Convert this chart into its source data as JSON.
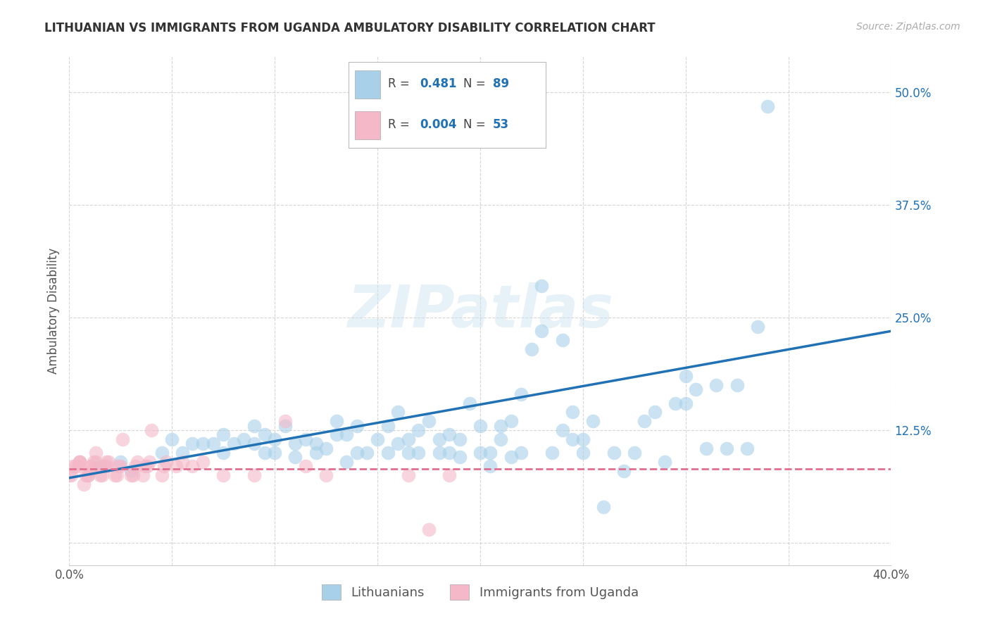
{
  "title": "LITHUANIAN VS IMMIGRANTS FROM UGANDA AMBULATORY DISABILITY CORRELATION CHART",
  "source": "Source: ZipAtlas.com",
  "ylabel": "Ambulatory Disability",
  "watermark": "ZIPatlas",
  "xlim": [
    0.0,
    0.4
  ],
  "ylim": [
    -0.025,
    0.54
  ],
  "xtick_positions": [
    0.0,
    0.05,
    0.1,
    0.15,
    0.2,
    0.25,
    0.3,
    0.35,
    0.4
  ],
  "xtick_labels": [
    "0.0%",
    "",
    "",
    "",
    "",
    "",
    "",
    "",
    "40.0%"
  ],
  "ytick_positions": [
    0.0,
    0.125,
    0.25,
    0.375,
    0.5
  ],
  "ytick_labels": [
    "",
    "12.5%",
    "25.0%",
    "37.5%",
    "50.0%"
  ],
  "grid_color": "#cccccc",
  "bg_color": "#ffffff",
  "legend_R_blue": "0.481",
  "legend_N_blue": "89",
  "legend_R_pink": "0.004",
  "legend_N_pink": "53",
  "blue_color": "#a8d0e8",
  "pink_color": "#f4b8c8",
  "blue_line_color": "#2171b5",
  "pink_line_color": "#e07090",
  "blue_label_color": "#2171b5",
  "legend1_label": "Lithuanians",
  "legend2_label": "Immigrants from Uganda",
  "blue_scatter_x": [
    0.015,
    0.025,
    0.03,
    0.045,
    0.05,
    0.055,
    0.06,
    0.065,
    0.07,
    0.075,
    0.075,
    0.08,
    0.085,
    0.09,
    0.09,
    0.095,
    0.095,
    0.1,
    0.1,
    0.105,
    0.11,
    0.11,
    0.115,
    0.12,
    0.12,
    0.125,
    0.13,
    0.13,
    0.135,
    0.135,
    0.14,
    0.14,
    0.145,
    0.15,
    0.155,
    0.155,
    0.16,
    0.16,
    0.165,
    0.165,
    0.17,
    0.17,
    0.175,
    0.18,
    0.18,
    0.185,
    0.185,
    0.19,
    0.19,
    0.195,
    0.2,
    0.2,
    0.205,
    0.205,
    0.21,
    0.21,
    0.215,
    0.215,
    0.22,
    0.22,
    0.225,
    0.23,
    0.23,
    0.235,
    0.24,
    0.24,
    0.245,
    0.245,
    0.25,
    0.25,
    0.255,
    0.26,
    0.265,
    0.27,
    0.275,
    0.28,
    0.285,
    0.29,
    0.295,
    0.3,
    0.3,
    0.305,
    0.31,
    0.315,
    0.32,
    0.325,
    0.33,
    0.335,
    0.34
  ],
  "blue_scatter_y": [
    0.085,
    0.09,
    0.08,
    0.1,
    0.115,
    0.1,
    0.11,
    0.11,
    0.11,
    0.1,
    0.12,
    0.11,
    0.115,
    0.11,
    0.13,
    0.1,
    0.12,
    0.1,
    0.115,
    0.13,
    0.095,
    0.11,
    0.115,
    0.1,
    0.11,
    0.105,
    0.12,
    0.135,
    0.09,
    0.12,
    0.1,
    0.13,
    0.1,
    0.115,
    0.1,
    0.13,
    0.11,
    0.145,
    0.1,
    0.115,
    0.1,
    0.125,
    0.135,
    0.1,
    0.115,
    0.1,
    0.12,
    0.095,
    0.115,
    0.155,
    0.1,
    0.13,
    0.085,
    0.1,
    0.115,
    0.13,
    0.095,
    0.135,
    0.1,
    0.165,
    0.215,
    0.235,
    0.285,
    0.1,
    0.125,
    0.225,
    0.115,
    0.145,
    0.1,
    0.115,
    0.135,
    0.04,
    0.1,
    0.08,
    0.1,
    0.135,
    0.145,
    0.09,
    0.155,
    0.185,
    0.155,
    0.17,
    0.105,
    0.175,
    0.105,
    0.175,
    0.105,
    0.24,
    0.485
  ],
  "pink_scatter_x": [
    0.0,
    0.001,
    0.002,
    0.003,
    0.004,
    0.005,
    0.005,
    0.005,
    0.007,
    0.008,
    0.009,
    0.009,
    0.01,
    0.01,
    0.011,
    0.012,
    0.013,
    0.013,
    0.015,
    0.016,
    0.017,
    0.018,
    0.018,
    0.019,
    0.022,
    0.023,
    0.024,
    0.025,
    0.026,
    0.03,
    0.031,
    0.032,
    0.033,
    0.036,
    0.037,
    0.038,
    0.039,
    0.04,
    0.045,
    0.046,
    0.047,
    0.052,
    0.055,
    0.06,
    0.065,
    0.075,
    0.09,
    0.105,
    0.115,
    0.125,
    0.165,
    0.175,
    0.185
  ],
  "pink_scatter_y": [
    0.075,
    0.075,
    0.085,
    0.085,
    0.085,
    0.09,
    0.09,
    0.09,
    0.065,
    0.075,
    0.075,
    0.075,
    0.08,
    0.085,
    0.085,
    0.09,
    0.09,
    0.1,
    0.075,
    0.075,
    0.085,
    0.085,
    0.09,
    0.09,
    0.075,
    0.075,
    0.085,
    0.085,
    0.115,
    0.075,
    0.075,
    0.085,
    0.09,
    0.075,
    0.085,
    0.085,
    0.09,
    0.125,
    0.075,
    0.085,
    0.09,
    0.085,
    0.09,
    0.085,
    0.09,
    0.075,
    0.075,
    0.135,
    0.085,
    0.075,
    0.075,
    0.015,
    0.075
  ],
  "blue_trend_x": [
    0.0,
    0.4
  ],
  "blue_trend_y": [
    0.072,
    0.235
  ],
  "pink_trend_x": [
    0.0,
    0.4
  ],
  "pink_trend_y": [
    0.082,
    0.082
  ]
}
